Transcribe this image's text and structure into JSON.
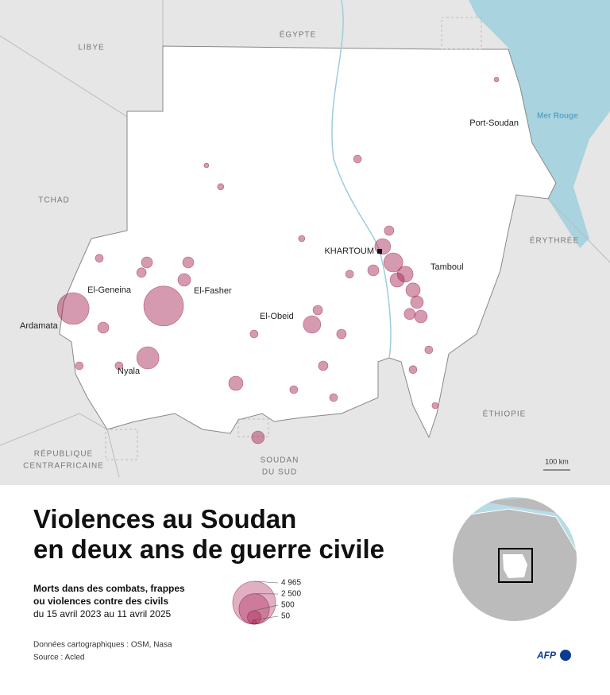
{
  "map": {
    "countries": {
      "libya": "LIBYE",
      "egypt": "ÉGYPTE",
      "chad": "TCHAD",
      "eritrea": "ÉRYTHRÉE",
      "ethiopia": "ÉTHIOPIE",
      "car": [
        "RÉPUBLIQUE",
        "CENTRAFRICAINE"
      ],
      "south_sudan": [
        "SOUDAN",
        "DU SUD"
      ]
    },
    "sea": "Mer Rouge",
    "cities": {
      "port_sudan": "Port-Soudan",
      "khartoum": "KHARTOUM",
      "tamboul": "Tamboul",
      "el_geneina": "El-Geneina",
      "ardamata": "Ardamata",
      "el_fasher": "El-Fasher",
      "el_obeid": "El-Obeid",
      "nyala": "Nyala"
    },
    "scale_label": "100 km",
    "points": [
      {
        "lon": 22.43,
        "lat": 13.79,
        "deaths": 2724
      },
      {
        "lon": 25.41,
        "lat": 13.87,
        "deaths": 4257
      },
      {
        "lon": 24.89,
        "lat": 12.24,
        "deaths": 1335
      },
      {
        "lon": 30.3,
        "lat": 13.29,
        "deaths": 824
      },
      {
        "lon": 32.63,
        "lat": 15.74,
        "deaths": 681
      },
      {
        "lon": 32.98,
        "lat": 15.24,
        "deaths": 981
      },
      {
        "lon": 33.37,
        "lat": 14.87,
        "deaths": 681
      },
      {
        "lon": 33.63,
        "lat": 14.37,
        "deaths": 552
      },
      {
        "lon": 33.76,
        "lat": 13.99,
        "deaths": 436
      },
      {
        "lon": 33.11,
        "lat": 14.69,
        "deaths": 552
      },
      {
        "lon": 32.32,
        "lat": 14.99,
        "deaths": 334
      },
      {
        "lon": 32.84,
        "lat": 16.24,
        "deaths": 245
      },
      {
        "lon": 33.52,
        "lat": 13.62,
        "deaths": 334
      },
      {
        "lon": 23.42,
        "lat": 13.19,
        "deaths": 334
      },
      {
        "lon": 26.22,
        "lat": 15.24,
        "deaths": 334
      },
      {
        "lon": 24.68,
        "lat": 14.92,
        "deaths": 245
      },
      {
        "lon": 26.09,
        "lat": 14.69,
        "deaths": 436
      },
      {
        "lon": 27.79,
        "lat": 11.44,
        "deaths": 552
      },
      {
        "lon": 28.52,
        "lat": 9.74,
        "deaths": 436
      },
      {
        "lon": 27.29,
        "lat": 17.62,
        "deaths": 109
      },
      {
        "lon": 30.67,
        "lat": 11.99,
        "deaths": 245
      },
      {
        "lon": 31.01,
        "lat": 10.99,
        "deaths": 170
      },
      {
        "lon": 31.27,
        "lat": 12.99,
        "deaths": 245
      },
      {
        "lon": 33.89,
        "lat": 13.54,
        "deaths": 436
      },
      {
        "lon": 34.15,
        "lat": 12.49,
        "deaths": 170
      },
      {
        "lon": 33.63,
        "lat": 11.87,
        "deaths": 170
      },
      {
        "lon": 34.36,
        "lat": 10.74,
        "deaths": 109
      },
      {
        "lon": 36.38,
        "lat": 20.99,
        "deaths": 61
      },
      {
        "lon": 31.8,
        "lat": 18.49,
        "deaths": 170
      },
      {
        "lon": 29.96,
        "lat": 15.99,
        "deaths": 109
      },
      {
        "lon": 26.82,
        "lat": 18.29,
        "deaths": 61
      },
      {
        "lon": 23.94,
        "lat": 11.99,
        "deaths": 170
      },
      {
        "lon": 22.63,
        "lat": 11.99,
        "deaths": 170
      },
      {
        "lon": 24.86,
        "lat": 15.24,
        "deaths": 334
      },
      {
        "lon": 23.29,
        "lat": 15.37,
        "deaths": 170
      },
      {
        "lon": 28.39,
        "lat": 12.99,
        "deaths": 170
      },
      {
        "lon": 29.7,
        "lat": 11.24,
        "deaths": 170
      },
      {
        "lon": 31.54,
        "lat": 14.87,
        "deaths": 170
      },
      {
        "lon": 30.49,
        "lat": 13.74,
        "deaths": 245
      }
    ]
  },
  "header": {
    "title": [
      "Violences au Soudan",
      "en deux ans de guerre civile"
    ],
    "subtitle": [
      "Morts dans des combats, frappes",
      "ou violences contre des civils",
      "du 15 avril 2023 au 11 avril 2025"
    ]
  },
  "legend": {
    "sizes": [
      {
        "value": 4965,
        "label": "4 965"
      },
      {
        "value": 2500,
        "label": "2 500"
      },
      500,
      50
    ]
  },
  "footer": {
    "sources": [
      "Données cartographiques : OSM, Nasa",
      "Source : Acled"
    ],
    "logo": "AFP"
  }
}
